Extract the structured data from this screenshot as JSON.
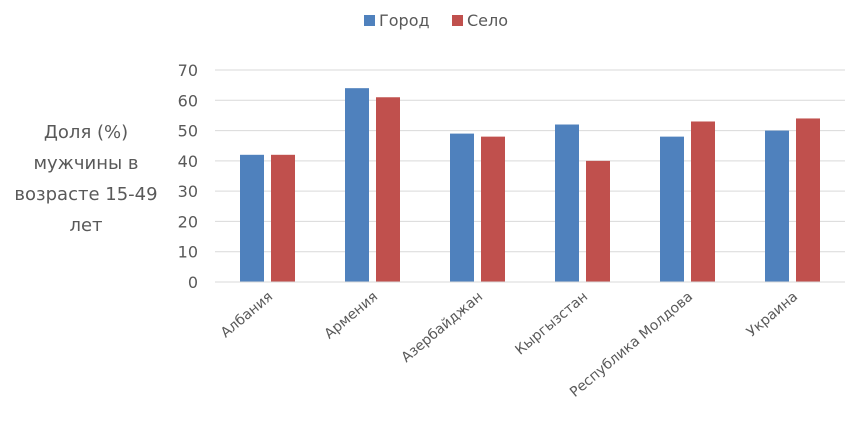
{
  "chart_data": {
    "type": "bar",
    "categories": [
      "Албания",
      "Армения",
      "Азербайджан",
      "Кыргызстан",
      "Республика Молдова",
      "Украина"
    ],
    "series": [
      {
        "name": "Город",
        "values": [
          42,
          64,
          49,
          52,
          48,
          50
        ],
        "color": "#4f81bd"
      },
      {
        "name": "Село",
        "values": [
          42,
          61,
          48,
          40,
          53,
          54
        ],
        "color": "#c0504d"
      }
    ],
    "ylabel": [
      "Доля (%)",
      "мужчины в",
      "возрасте 15-49",
      "лет"
    ],
    "ylim": [
      0,
      70
    ],
    "yticks": [
      0,
      10,
      20,
      30,
      40,
      50,
      60,
      70
    ],
    "grid": true,
    "legend_position": "top-center"
  }
}
